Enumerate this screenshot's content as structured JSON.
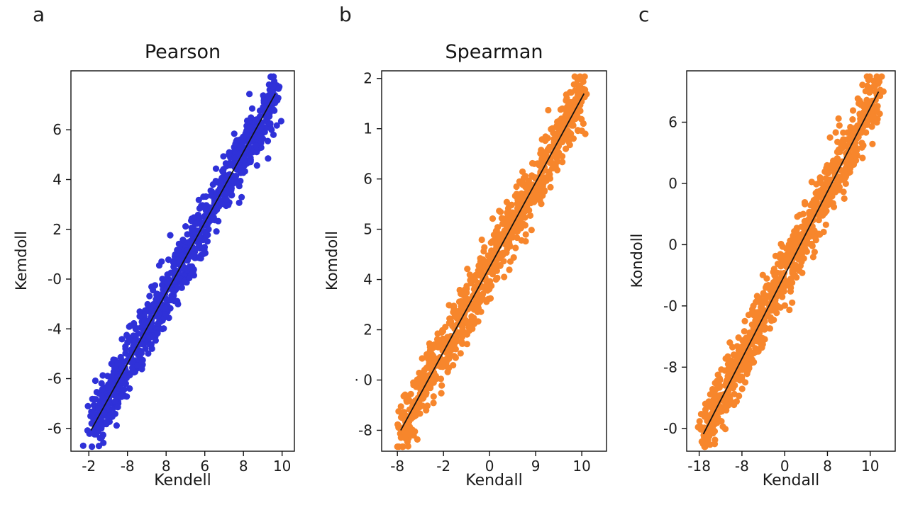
{
  "figure": {
    "background": "#ffffff",
    "text_color": "#1c1c1c"
  },
  "chart_data": [
    {
      "type": "scatter",
      "panel_label": "a",
      "title": "Pearson",
      "xlabel": "Kendell",
      "ylabel": "Kemdoll",
      "x_tick_labels": [
        "-2",
        "-8",
        "8",
        "6",
        "8",
        "10"
      ],
      "y_tick_labels": [
        "6",
        "4",
        "2",
        "-0",
        "-4",
        "-6",
        "-6"
      ],
      "dot_color": "#2f31d8",
      "line_color": "#111111",
      "legend": "none",
      "grid": false,
      "relationship": "strong positive linear correlation; dense point cloud scattered tightly around a fitted straight line from lower-left to upper-right",
      "points_spec": {
        "n": 950,
        "seed": 11,
        "noise": 0.037,
        "t_min": 0.0,
        "t_max": 1.0
      },
      "trend_line": {
        "x1_frac": 0.09,
        "y1_frac": 0.055,
        "x2_frac": 0.915,
        "y2_frac": 0.94
      }
    },
    {
      "type": "scatter",
      "panel_label": "b",
      "title": "Spearman",
      "xlabel": "Kendall",
      "ylabel": "Komdoll",
      "x_tick_labels": [
        "-8",
        "-2",
        "0",
        "9",
        "10"
      ],
      "y_tick_labels": [
        "2",
        "1",
        "6",
        "5",
        "4",
        "2",
        "· 0",
        "-8"
      ],
      "dot_color": "#f7862c",
      "line_color": "#111111",
      "legend": "none",
      "grid": false,
      "relationship": "strong positive linear correlation; dense orange point cloud scattered tightly around a fitted straight line from lower-left to upper-right",
      "points_spec": {
        "n": 900,
        "seed": 23,
        "noise": 0.037,
        "t_min": 0.0,
        "t_max": 1.0
      },
      "trend_line": {
        "x1_frac": 0.085,
        "y1_frac": 0.055,
        "x2_frac": 0.9,
        "y2_frac": 0.94
      }
    },
    {
      "type": "scatter",
      "panel_label": "c",
      "title": "",
      "xlabel": "Kendall",
      "ylabel": "Kondoll",
      "x_tick_labels": [
        "-18",
        "-8",
        "0",
        "8",
        "10"
      ],
      "y_tick_labels": [
        "6",
        "0",
        "0",
        "-0",
        "-8",
        "-0"
      ],
      "dot_color": "#f7862c",
      "line_color": "#111111",
      "legend": "none",
      "grid": false,
      "relationship": "strong positive linear correlation; dense orange point cloud scattered tightly around a fitted straight line from lower-left to upper-right",
      "points_spec": {
        "n": 900,
        "seed": 37,
        "noise": 0.037,
        "t_min": 0.0,
        "t_max": 1.0
      },
      "trend_line": {
        "x1_frac": 0.08,
        "y1_frac": 0.045,
        "x2_frac": 0.92,
        "y2_frac": 0.945
      }
    }
  ]
}
